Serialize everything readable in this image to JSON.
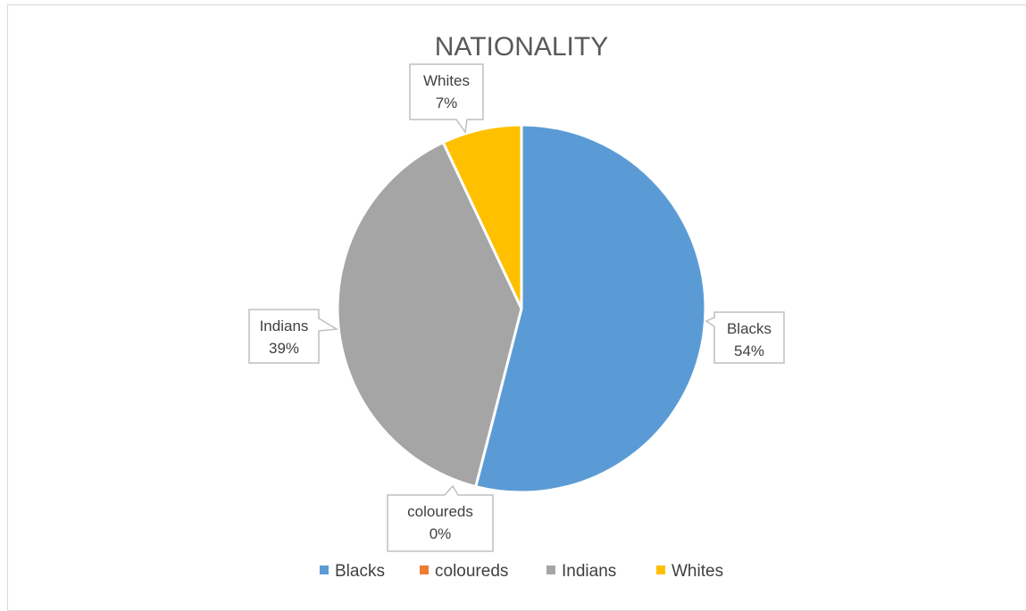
{
  "chart_data": {
    "type": "pie",
    "title": "NATIONALITY",
    "categories": [
      "Blacks",
      "coloureds",
      "Indians",
      "Whites"
    ],
    "values": [
      54,
      0,
      39,
      7
    ],
    "labels": {
      "Blacks": "54%",
      "coloureds": "0%",
      "Indians": "39%",
      "Whites": "7%"
    },
    "colors": [
      "#5b9bd5",
      "#ed7d31",
      "#a5a5a5",
      "#ffc000"
    ],
    "legend_position": "bottom"
  }
}
